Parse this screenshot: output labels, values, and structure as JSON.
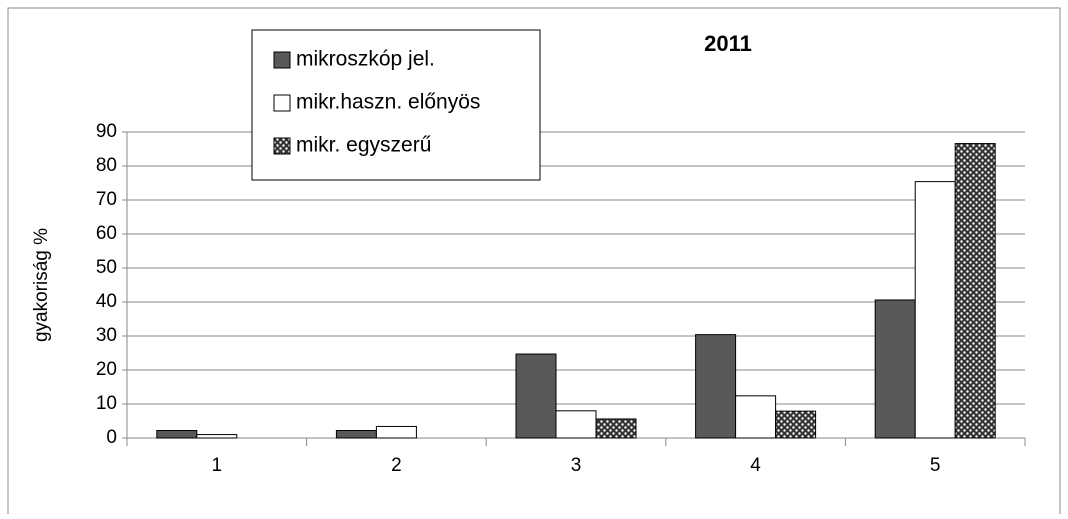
{
  "chart_data": {
    "type": "bar",
    "title": "2011",
    "y_label": "gyakoriság %",
    "categories": [
      "1",
      "2",
      "3",
      "4",
      "5"
    ],
    "series": [
      {
        "name": "mikroszkóp jel.",
        "color": "#595959",
        "values": [
          2.2,
          2.2,
          24.7,
          30.4,
          40.6
        ]
      },
      {
        "name": "mikr.haszn. előnyös",
        "color": "#ffffff",
        "values": [
          1,
          3.4,
          8,
          12.4,
          75.4
        ]
      },
      {
        "name": "mikr. egyszerű",
        "color": "#333333",
        "pattern": "dots",
        "values": [
          0,
          0,
          5.6,
          7.9,
          86.6
        ]
      }
    ],
    "ylim": [
      0,
      90
    ],
    "yticks": [
      0,
      10,
      20,
      30,
      40,
      50,
      60,
      70,
      80,
      90
    ],
    "grid": true
  }
}
